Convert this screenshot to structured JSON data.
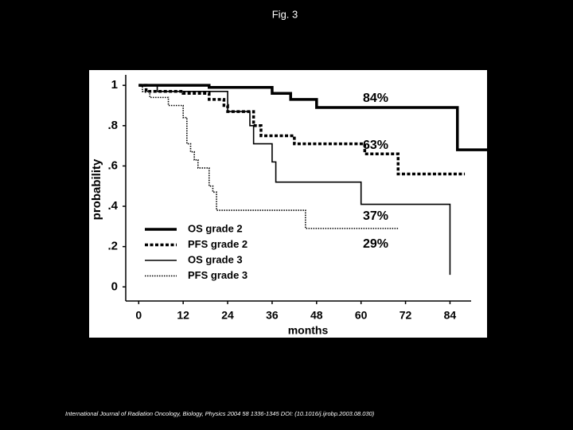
{
  "title": "Fig. 3",
  "chart_data": {
    "type": "step",
    "x_label": "months",
    "y_label": "probability",
    "xlim": [
      -3.5,
      94
    ],
    "ylim": [
      -0.07,
      1.06
    ],
    "xticks": [
      0,
      12,
      24,
      36,
      48,
      60,
      72,
      84
    ],
    "yticks": [
      0,
      {
        "value": 0.2,
        "label": ".2"
      },
      {
        "value": 0.4,
        "label": ".4"
      },
      {
        "value": 0.6,
        "label": ".6"
      },
      {
        "value": 0.8,
        "label": ".8"
      },
      1
    ],
    "series": [
      {
        "name": "OS grade 2",
        "color": "#000000",
        "x": [
          0,
          19,
          36,
          41,
          48,
          86,
          94
        ],
        "values": [
          1.0,
          0.99,
          0.96,
          0.93,
          0.89,
          0.68,
          0.68
        ]
      },
      {
        "name": "PFS grade 2",
        "color": "#000000",
        "x": [
          0,
          2,
          12,
          19,
          23,
          24,
          31,
          33,
          42,
          61,
          70,
          88
        ],
        "values": [
          1.0,
          0.97,
          0.96,
          0.93,
          0.9,
          0.87,
          0.8,
          0.75,
          0.71,
          0.66,
          0.56,
          0.56
        ]
      },
      {
        "name": "OS grade 3",
        "color": "#000000",
        "x": [
          0,
          5,
          24,
          30,
          31,
          36,
          37,
          60,
          84
        ],
        "values": [
          1.0,
          0.97,
          0.87,
          0.8,
          0.71,
          0.62,
          0.52,
          0.41,
          0.06
        ]
      },
      {
        "name": "PFS grade 3",
        "color": "#000000",
        "x": [
          0,
          1,
          3,
          8,
          12,
          13,
          14,
          15,
          16,
          19,
          20,
          21,
          45,
          70
        ],
        "values": [
          1.0,
          0.97,
          0.94,
          0.9,
          0.84,
          0.71,
          0.67,
          0.63,
          0.59,
          0.5,
          0.47,
          0.38,
          0.29,
          0.29
        ]
      }
    ],
    "annotations": [
      "84%",
      "63%",
      "37%",
      "29%"
    ]
  },
  "footer": "International Journal of Radiation Oncology, Biology, Physics 2004 58 1336-1345 DOI: (10.1016/j.ijrobp.2003.08.030)"
}
